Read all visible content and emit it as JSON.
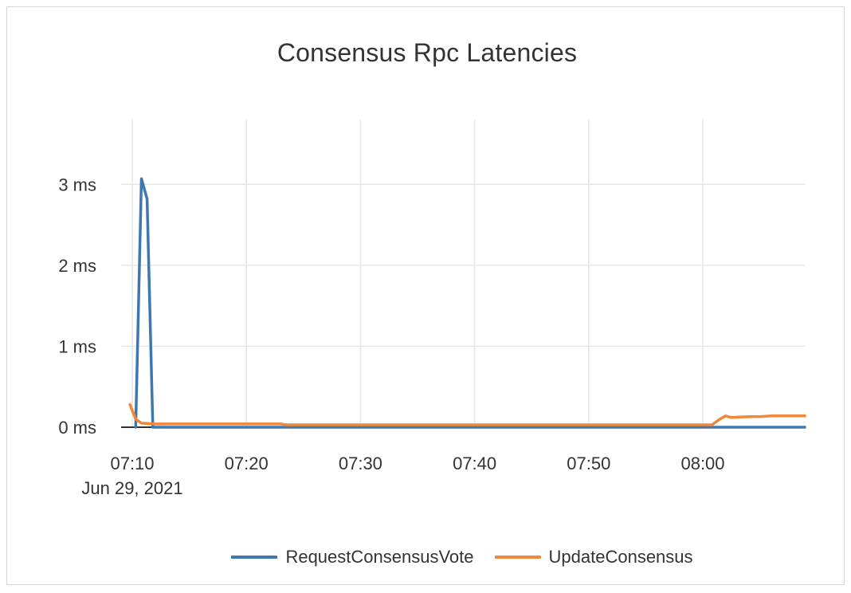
{
  "chart_data": {
    "type": "line",
    "title": "Consensus Rpc Latencies",
    "xlabel": "",
    "ylabel": "",
    "x_ticks": [
      "07:10",
      "07:20",
      "07:30",
      "07:40",
      "07:50",
      "08:00"
    ],
    "x_date_label": "Jun 29, 2021",
    "y_ticks": [
      "0 ms",
      "1 ms",
      "2 ms",
      "3 ms"
    ],
    "ylim": [
      0,
      3.8
    ],
    "xlim": [
      "07:09:48",
      "08:09:48"
    ],
    "grid": true,
    "legend": "bottom",
    "series": [
      {
        "name": "RequestConsensusVote",
        "color": "#3d78b0",
        "points": [
          [
            "07:10:18",
            0
          ],
          [
            "07:10:48",
            3.07
          ],
          [
            "07:11:18",
            2.82
          ],
          [
            "07:11:48",
            0
          ],
          [
            "08:09:48",
            0
          ]
        ]
      },
      {
        "name": "UpdateConsensus",
        "color": "#f0883a",
        "points": [
          [
            "07:09:48",
            0.28
          ],
          [
            "07:10:18",
            0.1
          ],
          [
            "07:10:48",
            0.05
          ],
          [
            "07:11:48",
            0.04
          ],
          [
            "07:20:00",
            0.04
          ],
          [
            "07:23:00",
            0.04
          ],
          [
            "07:23:30",
            0.03
          ],
          [
            "08:00:30",
            0.03
          ],
          [
            "08:00:48",
            0.03
          ],
          [
            "08:01:30",
            0.1
          ],
          [
            "08:02:00",
            0.14
          ],
          [
            "08:02:30",
            0.12
          ],
          [
            "08:04:00",
            0.13
          ],
          [
            "08:05:00",
            0.13
          ],
          [
            "08:06:00",
            0.14
          ],
          [
            "08:09:48",
            0.14
          ]
        ]
      }
    ]
  }
}
